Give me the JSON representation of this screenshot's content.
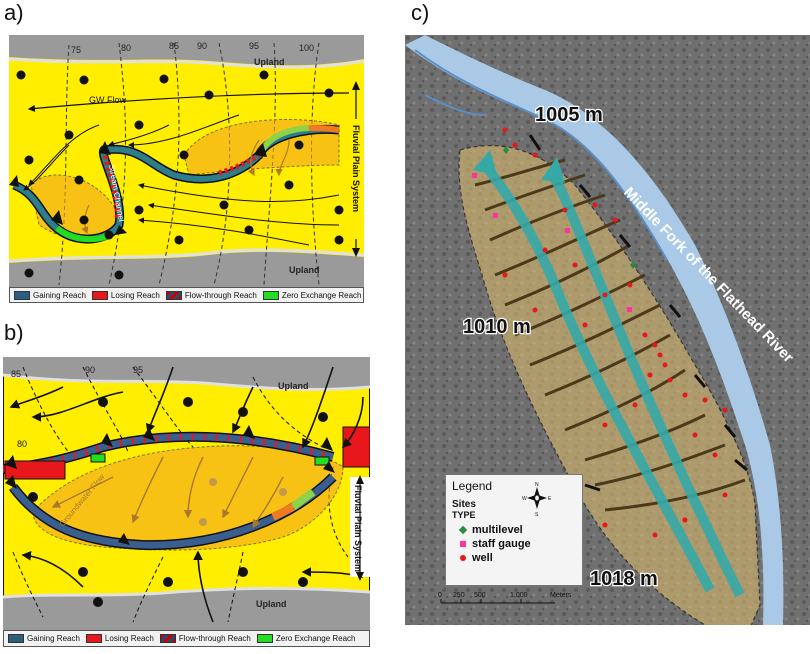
{
  "panel_labels": {
    "a": "a)",
    "b": "b)",
    "c": "c)"
  },
  "panel_a": {
    "contours": [
      "75",
      "80",
      "85",
      "90",
      "95",
      "100"
    ],
    "upland_top": "Upland",
    "upland_bottom": "Upland",
    "gw_flow": "GW Flow",
    "stream_channel": "Stream Channel",
    "fluvial": "Fluvial Plain System"
  },
  "panel_b": {
    "contours": [
      "85",
      "90",
      "95",
      "80"
    ],
    "upland_top": "Upland",
    "upland_bottom": "Upland",
    "groundwater_flow": "Groundwater Flow",
    "fluvial": "Fluvial Plain System"
  },
  "legend_reach": {
    "gaining": "Gaining Reach",
    "losing": "Losing Reach",
    "flowthrough": "Flow-through Reach",
    "zero": "Zero Exchange Reach",
    "colors": {
      "gaining": "#2e5e7e",
      "losing": "#e8171b",
      "zero": "#22dd22"
    }
  },
  "panel_c": {
    "elev_1005": "1005 m",
    "elev_1010": "1010 m",
    "elev_1018": "1018 m",
    "river": "Middle Fork of the Flathead River",
    "legend_title": "Legend",
    "sites": "Sites",
    "type": "TYPE",
    "multilevel": "multilevel",
    "staff_gauge": "staff gauge",
    "well": "well",
    "compass_n": "N",
    "compass_s": "S",
    "compass_e": "E",
    "compass_w": "W",
    "scale_ticks": [
      "0",
      "250",
      "500",
      "1,000"
    ],
    "scale_unit": "Meters",
    "colors": {
      "multilevel": "#2e8b3e",
      "staff_gauge": "#ff3399",
      "well": "#e8171b"
    }
  }
}
